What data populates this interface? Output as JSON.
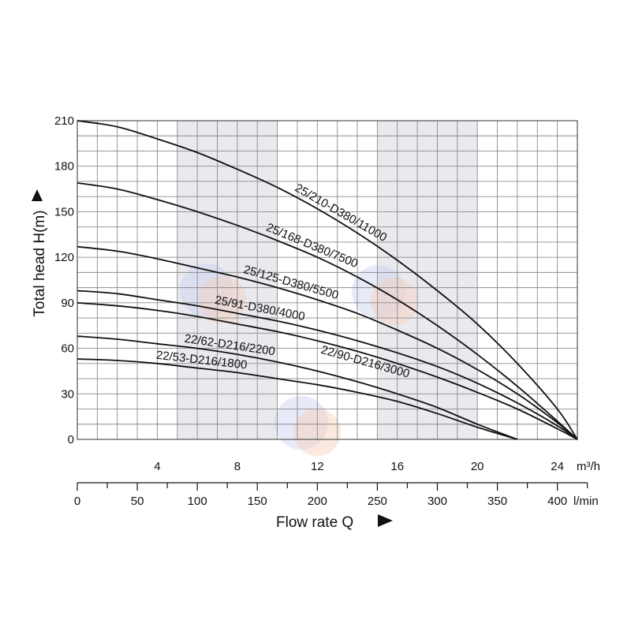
{
  "chart_data": {
    "type": "line",
    "title": "",
    "ylabel": "Total head H(m)",
    "xlabel": "Flow rate Q",
    "y_unit": "",
    "ylim": [
      0,
      210
    ],
    "xlim_m3h": [
      0,
      25
    ],
    "y_ticks": [
      0,
      30,
      60,
      90,
      120,
      150,
      180,
      210
    ],
    "x_ticks_m3h": [
      4,
      8,
      12,
      16,
      20,
      24
    ],
    "x_unit_m3h": "m³/h",
    "x_ticks_lmin": [
      0,
      50,
      100,
      150,
      200,
      250,
      300,
      350,
      400
    ],
    "x_unit_lmin": "l/min",
    "grid": true,
    "shaded_bands_m3h": [
      [
        5,
        10
      ],
      [
        15,
        20
      ]
    ],
    "colors": {
      "curve": "#111111",
      "grid": "#8c8c8c",
      "band": "#e9e9ee",
      "frame": "#555555"
    },
    "series": [
      {
        "name": "25/210-D380/11000",
        "x": [
          0,
          2,
          4,
          6,
          8,
          10,
          12,
          14,
          16,
          18,
          20,
          22,
          24,
          25
        ],
        "y": [
          210,
          206,
          198,
          189,
          178,
          166,
          152,
          136,
          118,
          98,
          76,
          50,
          20,
          0
        ]
      },
      {
        "name": "25/168-D380/7500",
        "x": [
          0,
          2,
          4,
          6,
          8,
          10,
          12,
          14,
          16,
          18,
          20,
          22,
          24,
          25
        ],
        "y": [
          169,
          165,
          158,
          150,
          141,
          131,
          120,
          107,
          92,
          75,
          56,
          35,
          12,
          0
        ]
      },
      {
        "name": "25/125-D380/5500",
        "x": [
          0,
          2,
          4,
          6,
          8,
          10,
          12,
          14,
          16,
          18,
          20,
          22,
          24,
          25
        ],
        "y": [
          127,
          124,
          119,
          113,
          107,
          100,
          92,
          83,
          72,
          60,
          46,
          30,
          11,
          0
        ]
      },
      {
        "name": "25/91-D380/4000",
        "x": [
          0,
          2,
          4,
          6,
          8,
          10,
          12,
          14,
          16,
          18,
          20,
          22,
          24,
          25
        ],
        "y": [
          98,
          96,
          92,
          88,
          83,
          78,
          72,
          65,
          57,
          48,
          37,
          24,
          9,
          0
        ]
      },
      {
        "name": "22/90-D216/3000",
        "x": [
          0,
          2,
          4,
          6,
          8,
          10,
          12,
          14,
          16,
          18,
          20,
          22,
          24,
          25
        ],
        "y": [
          90,
          88,
          85,
          81,
          76,
          71,
          65,
          58,
          50,
          41,
          31,
          20,
          7,
          0
        ]
      },
      {
        "name": "22/62-D216/2200",
        "x": [
          0,
          2,
          4,
          6,
          8,
          10,
          12,
          14,
          16,
          18,
          20,
          22
        ],
        "y": [
          68,
          66,
          63,
          60,
          56,
          51,
          45,
          38,
          30,
          21,
          10,
          0
        ]
      },
      {
        "name": "22/53-D216/1800",
        "x": [
          0,
          2,
          4,
          6,
          8,
          10,
          12,
          14,
          16,
          18,
          20,
          22
        ],
        "y": [
          53,
          52,
          50,
          47,
          44,
          40,
          36,
          31,
          25,
          17,
          8,
          0
        ]
      }
    ]
  }
}
